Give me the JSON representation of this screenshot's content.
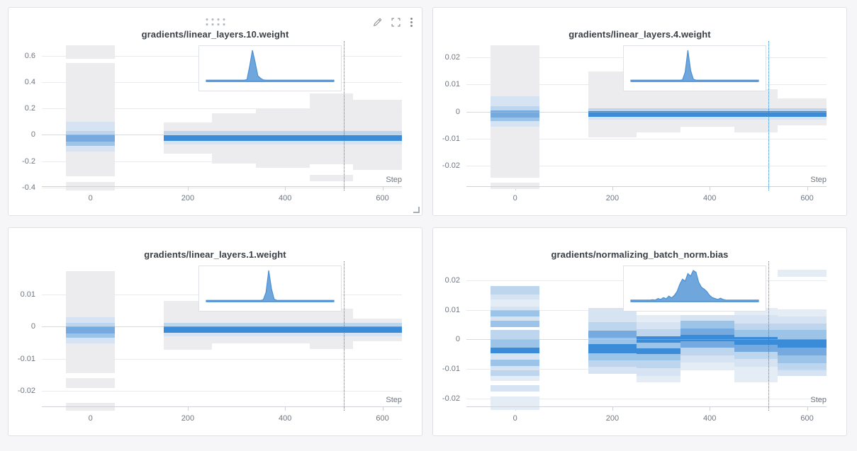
{
  "colors": {
    "page_bg": "#f6f6f8",
    "panel_bg": "#ffffff",
    "panel_border": "#dee2e6",
    "title_text": "#3a4046",
    "tick_text": "#6e7681",
    "grid": "#e9ebee",
    "zero_line": "#d7dadd",
    "axis": "#cfd3d7",
    "marker": "#3f7fc4",
    "icon": "#848b93",
    "inset_fill": "#5697d5",
    "inset_stroke": "#4a90d6",
    "g": "#ececee",
    "b0": "#e4ecf6",
    "b1": "#d5e3f2",
    "b2": "#bdd6ee",
    "b3": "#9cc4e8",
    "b4": "#74aadf",
    "b5": "#3a8bd8"
  },
  "panel_controls": {
    "edit": "edit",
    "fullscreen": "fullscreen",
    "menu": "more-options",
    "drag": "drag-handle",
    "resize": "resize-corner"
  },
  "chart_data": [
    {
      "type": "heatmap",
      "title": "gradients/linear_layers.10.weight",
      "xlabel": "Step",
      "xticks": [
        0,
        200,
        400,
        600
      ],
      "xtick_labels": [
        "0",
        "200",
        "400",
        "600"
      ],
      "xlim": [
        -100,
        640
      ],
      "yticks": [
        0.6,
        0.4,
        0.2,
        0,
        -0.2,
        -0.4
      ],
      "ytick_labels": [
        "0.6",
        "0.4",
        "0.2",
        "0",
        "-0.2",
        "-0.4"
      ],
      "ylim_top": 0.71,
      "ylim_base": -0.395,
      "marker_step": 520,
      "bands": [
        [
          -50,
          50,
          0.575,
          0.678,
          "g"
        ],
        [
          -50,
          50,
          -0.316,
          0.545,
          "g"
        ],
        [
          -50,
          50,
          -0.42,
          -0.36,
          "g"
        ],
        [
          -50,
          50,
          0.028,
          0.1,
          "b1"
        ],
        [
          -50,
          50,
          0.0,
          0.028,
          "b2"
        ],
        [
          -50,
          50,
          -0.052,
          0.0,
          "b4"
        ],
        [
          -50,
          50,
          -0.082,
          -0.052,
          "b3"
        ],
        [
          -50,
          50,
          -0.125,
          -0.082,
          "b1"
        ],
        [
          150,
          250,
          -0.145,
          0.095,
          "g"
        ],
        [
          250,
          340,
          -0.22,
          0.165,
          "g"
        ],
        [
          340,
          450,
          -0.248,
          0.2,
          "g"
        ],
        [
          450,
          540,
          -0.225,
          0.258,
          "g"
        ],
        [
          450,
          540,
          0.262,
          0.315,
          "g"
        ],
        [
          450,
          540,
          -0.352,
          -0.305,
          "g"
        ],
        [
          540,
          640,
          -0.268,
          0.265,
          "g"
        ],
        [
          150,
          640,
          -0.004,
          0.027,
          "b2"
        ],
        [
          150,
          640,
          -0.046,
          -0.004,
          "b5"
        ],
        [
          150,
          640,
          -0.075,
          -0.046,
          "b1"
        ]
      ],
      "inset": {
        "bins": [
          0.04,
          0.04,
          0.04,
          0.04,
          0.04,
          0.04,
          0.04,
          0.04,
          0.04,
          0.04,
          0.04,
          0.04,
          0.04,
          0.04,
          0.04,
          0.06,
          0.5,
          1,
          0.62,
          0.18,
          0.1,
          0.05,
          0.04,
          0.04,
          0.04,
          0.04,
          0.04,
          0.04,
          0.04,
          0.04,
          0.04,
          0.04,
          0.04,
          0.04,
          0.04,
          0.04,
          0.04,
          0.04,
          0.04,
          0.04,
          0.04,
          0.04,
          0.04,
          0.04,
          0.04,
          0.04,
          0.04,
          0.04
        ]
      }
    },
    {
      "type": "heatmap",
      "title": "gradients/linear_layers.4.weight",
      "xlabel": "Step",
      "xticks": [
        0,
        200,
        400,
        600
      ],
      "xtick_labels": [
        "0",
        "200",
        "400",
        "600"
      ],
      "xlim": [
        -100,
        640
      ],
      "yticks": [
        0.02,
        0.01,
        0,
        -0.01,
        -0.02
      ],
      "ytick_labels": [
        "0.02",
        "0.01",
        "0",
        "-0.01",
        "-0.02"
      ],
      "ylim_top": 0.026,
      "ylim_base": -0.0278,
      "marker_step": 520,
      "bands": [
        [
          -50,
          50,
          -0.0245,
          0.0245,
          "g"
        ],
        [
          -50,
          50,
          -0.0287,
          -0.0262,
          "g"
        ],
        [
          -50,
          50,
          0.002,
          0.0056,
          "b1"
        ],
        [
          -50,
          50,
          0.0004,
          0.002,
          "b2"
        ],
        [
          -50,
          50,
          -0.0021,
          0.0004,
          "b4"
        ],
        [
          -50,
          50,
          -0.0036,
          -0.0021,
          "b3"
        ],
        [
          -50,
          50,
          -0.0056,
          -0.0036,
          "b1"
        ],
        [
          150,
          250,
          -0.0095,
          0.0147,
          "g"
        ],
        [
          250,
          340,
          -0.0078,
          0.0124,
          "g"
        ],
        [
          340,
          450,
          -0.0056,
          0.0082,
          "g"
        ],
        [
          450,
          540,
          -0.0078,
          0.0082,
          "g"
        ],
        [
          540,
          640,
          -0.0051,
          0.0049,
          "g"
        ],
        [
          150,
          640,
          0.0002,
          0.0012,
          "b2"
        ],
        [
          150,
          640,
          -0.0019,
          0.0002,
          "b5"
        ],
        [
          150,
          640,
          -0.003,
          -0.0019,
          "b1"
        ]
      ],
      "inset": {
        "bins": [
          0.04,
          0.04,
          0.04,
          0.04,
          0.04,
          0.04,
          0.04,
          0.04,
          0.04,
          0.04,
          0.04,
          0.04,
          0.04,
          0.04,
          0.04,
          0.04,
          0.04,
          0.04,
          0.04,
          0.05,
          0.3,
          1,
          0.35,
          0.07,
          0.04,
          0.04,
          0.04,
          0.04,
          0.04,
          0.04,
          0.04,
          0.04,
          0.04,
          0.04,
          0.04,
          0.04,
          0.04,
          0.04,
          0.04,
          0.04,
          0.04,
          0.04,
          0.04,
          0.04,
          0.04,
          0.04,
          0.04,
          0.04
        ]
      }
    },
    {
      "type": "heatmap",
      "title": "gradients/linear_layers.1.weight",
      "xlabel": "Step",
      "xticks": [
        0,
        200,
        400,
        600
      ],
      "xtick_labels": [
        "0",
        "200",
        "400",
        "600"
      ],
      "xlim": [
        -100,
        640
      ],
      "yticks": [
        0.01,
        0,
        -0.01,
        -0.02
      ],
      "ytick_labels": [
        "0.01",
        "0",
        "-0.01",
        "-0.02"
      ],
      "ylim_top": 0.0204,
      "ylim_base": -0.0251,
      "marker_step": 520,
      "bands": [
        [
          -50,
          50,
          -0.0146,
          0.0172,
          "g"
        ],
        [
          -50,
          50,
          -0.0192,
          -0.016,
          "g"
        ],
        [
          -50,
          50,
          -0.0262,
          -0.0238,
          "g"
        ],
        [
          -50,
          50,
          0.0012,
          0.003,
          "b1"
        ],
        [
          -50,
          50,
          0.0001,
          0.0012,
          "b2"
        ],
        [
          -50,
          50,
          -0.0021,
          0.0001,
          "b4"
        ],
        [
          -50,
          50,
          -0.0034,
          -0.0021,
          "b3"
        ],
        [
          -50,
          50,
          -0.0052,
          -0.0034,
          "b1"
        ],
        [
          150,
          250,
          -0.0071,
          0.0081,
          "g"
        ],
        [
          250,
          450,
          -0.0053,
          0.0081,
          "g"
        ],
        [
          450,
          540,
          -0.0071,
          0.0056,
          "g"
        ],
        [
          540,
          640,
          -0.0046,
          0.0026,
          "g"
        ],
        [
          150,
          640,
          0.0001,
          0.0011,
          "b2"
        ],
        [
          150,
          640,
          -0.002,
          0.0001,
          "b5"
        ],
        [
          150,
          640,
          -0.0031,
          -0.002,
          "b1"
        ]
      ],
      "inset": {
        "bins": [
          0.04,
          0.04,
          0.04,
          0.04,
          0.04,
          0.04,
          0.04,
          0.04,
          0.04,
          0.04,
          0.04,
          0.04,
          0.04,
          0.04,
          0.04,
          0.04,
          0.04,
          0.04,
          0.04,
          0.04,
          0.04,
          0.06,
          0.3,
          1,
          0.42,
          0.08,
          0.04,
          0.04,
          0.04,
          0.04,
          0.04,
          0.04,
          0.04,
          0.04,
          0.04,
          0.04,
          0.04,
          0.04,
          0.04,
          0.04,
          0.04,
          0.04,
          0.04,
          0.04,
          0.04,
          0.04,
          0.04,
          0.04
        ]
      }
    },
    {
      "type": "heatmap",
      "title": "gradients/normalizing_batch_norm.bias",
      "xlabel": "Step",
      "xticks": [
        0,
        200,
        400,
        600
      ],
      "xtick_labels": [
        "0",
        "200",
        "400",
        "600"
      ],
      "xlim": [
        -100,
        640
      ],
      "yticks": [
        0.02,
        0.01,
        0,
        -0.01,
        -0.02
      ],
      "ytick_labels": [
        "0.02",
        "0.01",
        "0",
        "-0.01",
        "-0.02"
      ],
      "ylim_top": 0.0265,
      "ylim_base": -0.023,
      "marker_step": 520,
      "bands": [
        [
          -50,
          50,
          0.0152,
          0.0182,
          "b2"
        ],
        [
          -50,
          50,
          0.0136,
          0.0152,
          "b1"
        ],
        [
          -50,
          50,
          0.0112,
          0.0136,
          "b0"
        ],
        [
          -50,
          50,
          0.01,
          0.0112,
          "b1"
        ],
        [
          -50,
          50,
          0.0077,
          0.01,
          "b3"
        ],
        [
          -50,
          50,
          0.0063,
          0.0077,
          "b1"
        ],
        [
          -50,
          50,
          0.0041,
          0.0063,
          "b3"
        ],
        [
          -50,
          50,
          0.0,
          0.0031,
          "b2"
        ],
        [
          -50,
          50,
          -0.0028,
          0.0,
          "b3"
        ],
        [
          -50,
          50,
          -0.0047,
          -0.0028,
          "b5"
        ],
        [
          -50,
          50,
          -0.007,
          -0.0047,
          "b1"
        ],
        [
          -50,
          50,
          -0.009,
          -0.007,
          "b3"
        ],
        [
          -50,
          50,
          -0.0106,
          -0.009,
          "b1"
        ],
        [
          -50,
          50,
          -0.0125,
          -0.0106,
          "b2"
        ],
        [
          -50,
          50,
          -0.0141,
          -0.0125,
          "b0"
        ],
        [
          -50,
          50,
          -0.0176,
          -0.0155,
          "b1"
        ],
        [
          -50,
          50,
          -0.024,
          -0.0193,
          "b0"
        ],
        [
          150,
          250,
          0.0058,
          0.0106,
          "b1"
        ],
        [
          150,
          250,
          0.003,
          0.0058,
          "b2"
        ],
        [
          150,
          250,
          0.0006,
          0.003,
          "b4"
        ],
        [
          150,
          250,
          -0.0017,
          0.0006,
          "b3"
        ],
        [
          150,
          250,
          -0.0047,
          -0.0017,
          "b5"
        ],
        [
          150,
          250,
          -0.0071,
          -0.0047,
          "b3"
        ],
        [
          150,
          250,
          -0.0094,
          -0.0071,
          "b2"
        ],
        [
          150,
          250,
          -0.0118,
          -0.0094,
          "b1"
        ],
        [
          250,
          340,
          0.0059,
          0.0082,
          "b0"
        ],
        [
          250,
          340,
          0.0035,
          0.0059,
          "b1"
        ],
        [
          250,
          340,
          0.001,
          0.0035,
          "b2"
        ],
        [
          250,
          340,
          -0.0012,
          0.001,
          "b5"
        ],
        [
          250,
          340,
          -0.0031,
          -0.0012,
          "b3"
        ],
        [
          250,
          340,
          -0.005,
          -0.0031,
          "b5"
        ],
        [
          250,
          340,
          -0.0071,
          -0.005,
          "b3"
        ],
        [
          250,
          340,
          -0.0097,
          -0.0071,
          "b2"
        ],
        [
          250,
          340,
          -0.0125,
          -0.0097,
          "b1"
        ],
        [
          250,
          340,
          -0.0145,
          -0.0125,
          "b0"
        ],
        [
          340,
          450,
          0.0063,
          0.0082,
          "b1"
        ],
        [
          340,
          450,
          0.0037,
          0.0063,
          "b3"
        ],
        [
          340,
          450,
          0.0016,
          0.0037,
          "b4"
        ],
        [
          340,
          450,
          -0.0007,
          0.0016,
          "b5"
        ],
        [
          340,
          450,
          -0.0028,
          -0.0007,
          "b4"
        ],
        [
          340,
          450,
          -0.0054,
          -0.0028,
          "b2"
        ],
        [
          340,
          450,
          -0.0078,
          -0.0054,
          "b1"
        ],
        [
          340,
          450,
          -0.0106,
          -0.0078,
          "b0"
        ],
        [
          450,
          540,
          0.0082,
          0.0106,
          "b0"
        ],
        [
          450,
          540,
          0.0054,
          0.0082,
          "b1"
        ],
        [
          450,
          540,
          0.0031,
          0.0054,
          "b2"
        ],
        [
          450,
          540,
          0.0007,
          0.0031,
          "b3"
        ],
        [
          450,
          540,
          -0.0019,
          0.0007,
          "b5"
        ],
        [
          450,
          540,
          -0.0042,
          -0.0019,
          "b4"
        ],
        [
          450,
          540,
          -0.0066,
          -0.0042,
          "b2"
        ],
        [
          450,
          540,
          -0.0094,
          -0.0066,
          "b1"
        ],
        [
          450,
          540,
          -0.0118,
          -0.0094,
          "b0"
        ],
        [
          450,
          540,
          -0.0145,
          -0.0118,
          "b0"
        ],
        [
          540,
          640,
          0.0212,
          0.0236,
          "b0"
        ],
        [
          540,
          640,
          0.0078,
          0.0101,
          "b0"
        ],
        [
          540,
          640,
          0.0054,
          0.0078,
          "b1"
        ],
        [
          540,
          640,
          0.0031,
          0.0054,
          "b2"
        ],
        [
          540,
          640,
          0.0,
          0.0031,
          "b3"
        ],
        [
          540,
          640,
          -0.0028,
          0.0,
          "b5"
        ],
        [
          540,
          640,
          -0.0054,
          -0.0028,
          "b4"
        ],
        [
          540,
          640,
          -0.008,
          -0.0054,
          "b3"
        ],
        [
          540,
          640,
          -0.0106,
          -0.008,
          "b2"
        ],
        [
          540,
          640,
          -0.0125,
          -0.0106,
          "b1"
        ]
      ],
      "inset": {
        "bins": [
          0.05,
          0.05,
          0.05,
          0.05,
          0.05,
          0.05,
          0.05,
          0.05,
          0.06,
          0.05,
          0.1,
          0.07,
          0.13,
          0.09,
          0.18,
          0.12,
          0.2,
          0.32,
          0.55,
          0.72,
          0.66,
          0.9,
          0.82,
          1,
          0.94,
          0.62,
          0.46,
          0.4,
          0.32,
          0.2,
          0.13,
          0.1,
          0.07,
          0.11,
          0.07,
          0.05,
          0.05,
          0.05,
          0.05,
          0.05,
          0.05,
          0.05,
          0.05,
          0.05,
          0.05,
          0.05,
          0.05,
          0.05
        ]
      }
    }
  ]
}
